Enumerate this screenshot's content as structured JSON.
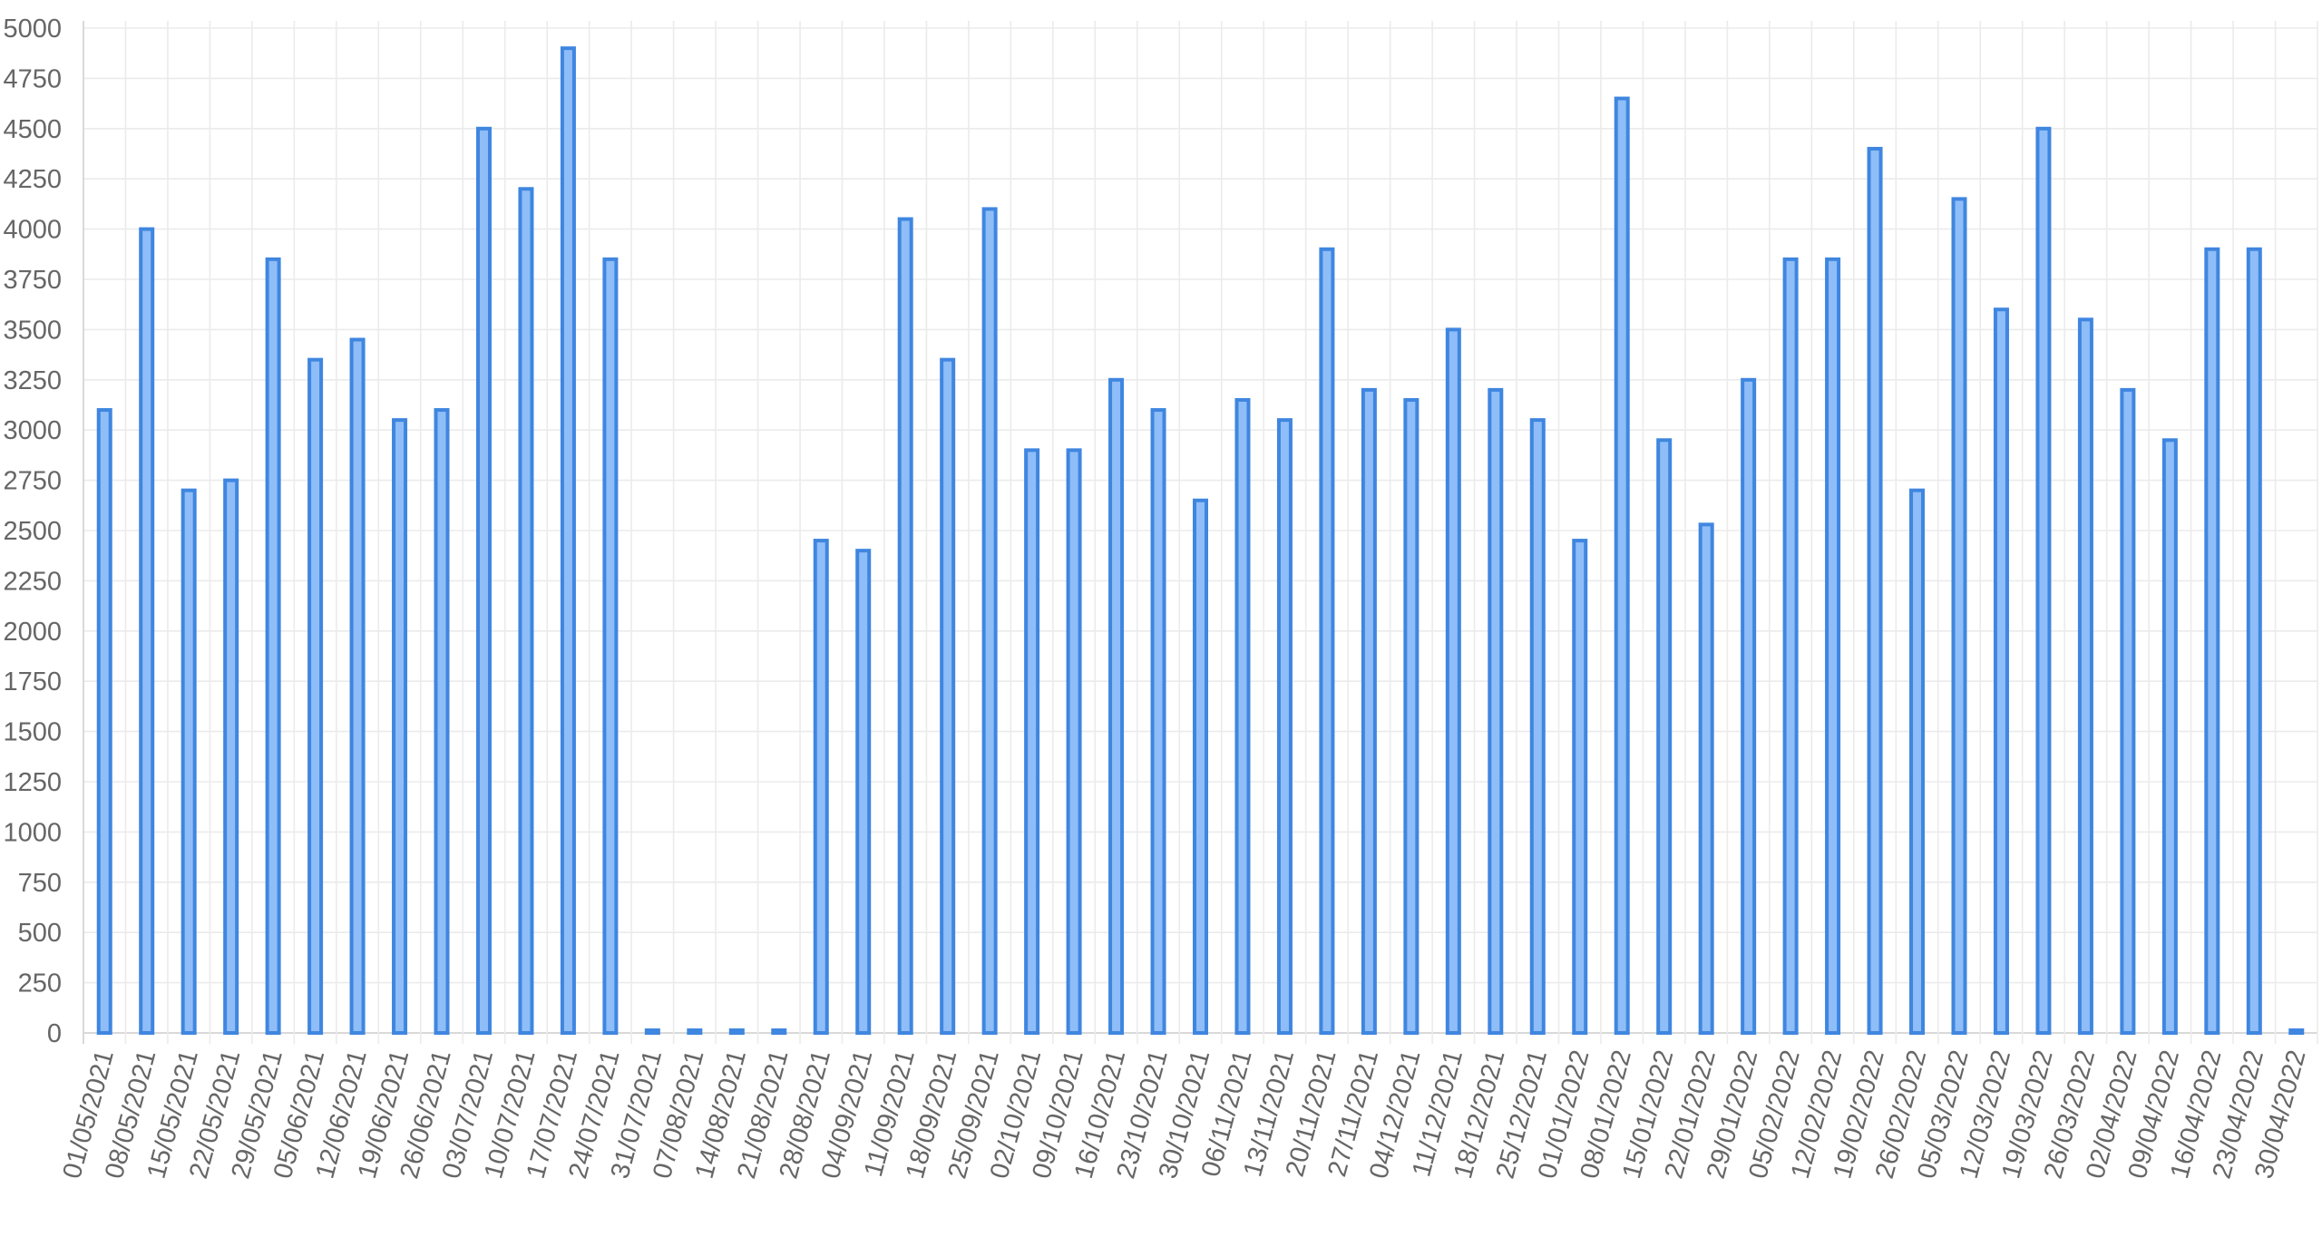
{
  "chart_data": {
    "type": "bar",
    "title": "",
    "xlabel": "",
    "ylabel": "",
    "ylim": [
      0,
      5000
    ],
    "ystep": 250,
    "grid": true,
    "legend": "none",
    "colors": {
      "bar_fill": "#8fbdf7",
      "bar_stroke": "#3f86e0"
    },
    "categories": [
      "01/05/2021",
      "08/05/2021",
      "15/05/2021",
      "22/05/2021",
      "29/05/2021",
      "05/06/2021",
      "12/06/2021",
      "19/06/2021",
      "26/06/2021",
      "03/07/2021",
      "10/07/2021",
      "17/07/2021",
      "24/07/2021",
      "31/07/2021",
      "07/08/2021",
      "14/08/2021",
      "21/08/2021",
      "28/08/2021",
      "04/09/2021",
      "11/09/2021",
      "18/09/2021",
      "25/09/2021",
      "02/10/2021",
      "09/10/2021",
      "16/10/2021",
      "23/10/2021",
      "30/10/2021",
      "06/11/2021",
      "13/11/2021",
      "20/11/2021",
      "27/11/2021",
      "04/12/2021",
      "11/12/2021",
      "18/12/2021",
      "25/12/2021",
      "01/01/2022",
      "08/01/2022",
      "15/01/2022",
      "22/01/2022",
      "29/01/2022",
      "05/02/2022",
      "12/02/2022",
      "19/02/2022",
      "26/02/2022",
      "05/03/2022",
      "12/03/2022",
      "19/03/2022",
      "26/03/2022",
      "02/04/2022",
      "09/04/2022",
      "16/04/2022",
      "23/04/2022",
      "30/04/2022"
    ],
    "values": [
      3100,
      4000,
      2700,
      2750,
      3850,
      3350,
      3450,
      3050,
      3100,
      4500,
      4200,
      4900,
      3850,
      0,
      0,
      0,
      0,
      2450,
      2400,
      4050,
      3350,
      4100,
      2900,
      2900,
      3250,
      3100,
      2650,
      3150,
      3050,
      3900,
      3200,
      3150,
      3500,
      3200,
      3050,
      2450,
      4650,
      2950,
      2530,
      3250,
      3850,
      3850,
      4400,
      2700,
      4150,
      3600,
      4500,
      3550,
      3200,
      2950,
      3900,
      3900,
      0
    ]
  }
}
